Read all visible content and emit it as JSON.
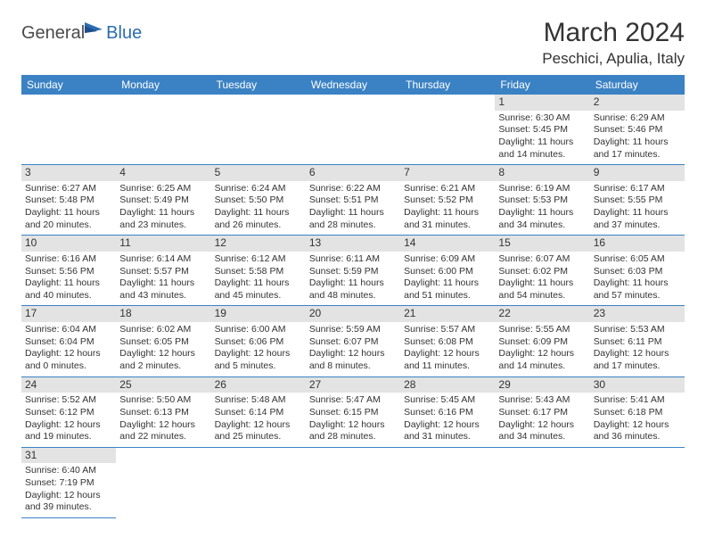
{
  "logo": {
    "general": "General",
    "blue": "Blue"
  },
  "title": "March 2024",
  "location": "Peschici, Apulia, Italy",
  "colors": {
    "header_bg": "#3b82c4",
    "header_fg": "#ffffff",
    "daynum_bg": "#e3e3e3",
    "border": "#3b82c4",
    "logo_blue": "#2b6cb0",
    "text": "#333333"
  },
  "weekdays": [
    "Sunday",
    "Monday",
    "Tuesday",
    "Wednesday",
    "Thursday",
    "Friday",
    "Saturday"
  ],
  "lead_blanks": 5,
  "days": [
    {
      "n": 1,
      "sr": "6:30 AM",
      "ss": "5:45 PM",
      "dl": "11 hours and 14 minutes."
    },
    {
      "n": 2,
      "sr": "6:29 AM",
      "ss": "5:46 PM",
      "dl": "11 hours and 17 minutes."
    },
    {
      "n": 3,
      "sr": "6:27 AM",
      "ss": "5:48 PM",
      "dl": "11 hours and 20 minutes."
    },
    {
      "n": 4,
      "sr": "6:25 AM",
      "ss": "5:49 PM",
      "dl": "11 hours and 23 minutes."
    },
    {
      "n": 5,
      "sr": "6:24 AM",
      "ss": "5:50 PM",
      "dl": "11 hours and 26 minutes."
    },
    {
      "n": 6,
      "sr": "6:22 AM",
      "ss": "5:51 PM",
      "dl": "11 hours and 28 minutes."
    },
    {
      "n": 7,
      "sr": "6:21 AM",
      "ss": "5:52 PM",
      "dl": "11 hours and 31 minutes."
    },
    {
      "n": 8,
      "sr": "6:19 AM",
      "ss": "5:53 PM",
      "dl": "11 hours and 34 minutes."
    },
    {
      "n": 9,
      "sr": "6:17 AM",
      "ss": "5:55 PM",
      "dl": "11 hours and 37 minutes."
    },
    {
      "n": 10,
      "sr": "6:16 AM",
      "ss": "5:56 PM",
      "dl": "11 hours and 40 minutes."
    },
    {
      "n": 11,
      "sr": "6:14 AM",
      "ss": "5:57 PM",
      "dl": "11 hours and 43 minutes."
    },
    {
      "n": 12,
      "sr": "6:12 AM",
      "ss": "5:58 PM",
      "dl": "11 hours and 45 minutes."
    },
    {
      "n": 13,
      "sr": "6:11 AM",
      "ss": "5:59 PM",
      "dl": "11 hours and 48 minutes."
    },
    {
      "n": 14,
      "sr": "6:09 AM",
      "ss": "6:00 PM",
      "dl": "11 hours and 51 minutes."
    },
    {
      "n": 15,
      "sr": "6:07 AM",
      "ss": "6:02 PM",
      "dl": "11 hours and 54 minutes."
    },
    {
      "n": 16,
      "sr": "6:05 AM",
      "ss": "6:03 PM",
      "dl": "11 hours and 57 minutes."
    },
    {
      "n": 17,
      "sr": "6:04 AM",
      "ss": "6:04 PM",
      "dl": "12 hours and 0 minutes."
    },
    {
      "n": 18,
      "sr": "6:02 AM",
      "ss": "6:05 PM",
      "dl": "12 hours and 2 minutes."
    },
    {
      "n": 19,
      "sr": "6:00 AM",
      "ss": "6:06 PM",
      "dl": "12 hours and 5 minutes."
    },
    {
      "n": 20,
      "sr": "5:59 AM",
      "ss": "6:07 PM",
      "dl": "12 hours and 8 minutes."
    },
    {
      "n": 21,
      "sr": "5:57 AM",
      "ss": "6:08 PM",
      "dl": "12 hours and 11 minutes."
    },
    {
      "n": 22,
      "sr": "5:55 AM",
      "ss": "6:09 PM",
      "dl": "12 hours and 14 minutes."
    },
    {
      "n": 23,
      "sr": "5:53 AM",
      "ss": "6:11 PM",
      "dl": "12 hours and 17 minutes."
    },
    {
      "n": 24,
      "sr": "5:52 AM",
      "ss": "6:12 PM",
      "dl": "12 hours and 19 minutes."
    },
    {
      "n": 25,
      "sr": "5:50 AM",
      "ss": "6:13 PM",
      "dl": "12 hours and 22 minutes."
    },
    {
      "n": 26,
      "sr": "5:48 AM",
      "ss": "6:14 PM",
      "dl": "12 hours and 25 minutes."
    },
    {
      "n": 27,
      "sr": "5:47 AM",
      "ss": "6:15 PM",
      "dl": "12 hours and 28 minutes."
    },
    {
      "n": 28,
      "sr": "5:45 AM",
      "ss": "6:16 PM",
      "dl": "12 hours and 31 minutes."
    },
    {
      "n": 29,
      "sr": "5:43 AM",
      "ss": "6:17 PM",
      "dl": "12 hours and 34 minutes."
    },
    {
      "n": 30,
      "sr": "5:41 AM",
      "ss": "6:18 PM",
      "dl": "12 hours and 36 minutes."
    },
    {
      "n": 31,
      "sr": "6:40 AM",
      "ss": "7:19 PM",
      "dl": "12 hours and 39 minutes."
    }
  ],
  "labels": {
    "sunrise": "Sunrise:",
    "sunset": "Sunset:",
    "daylight": "Daylight:"
  }
}
